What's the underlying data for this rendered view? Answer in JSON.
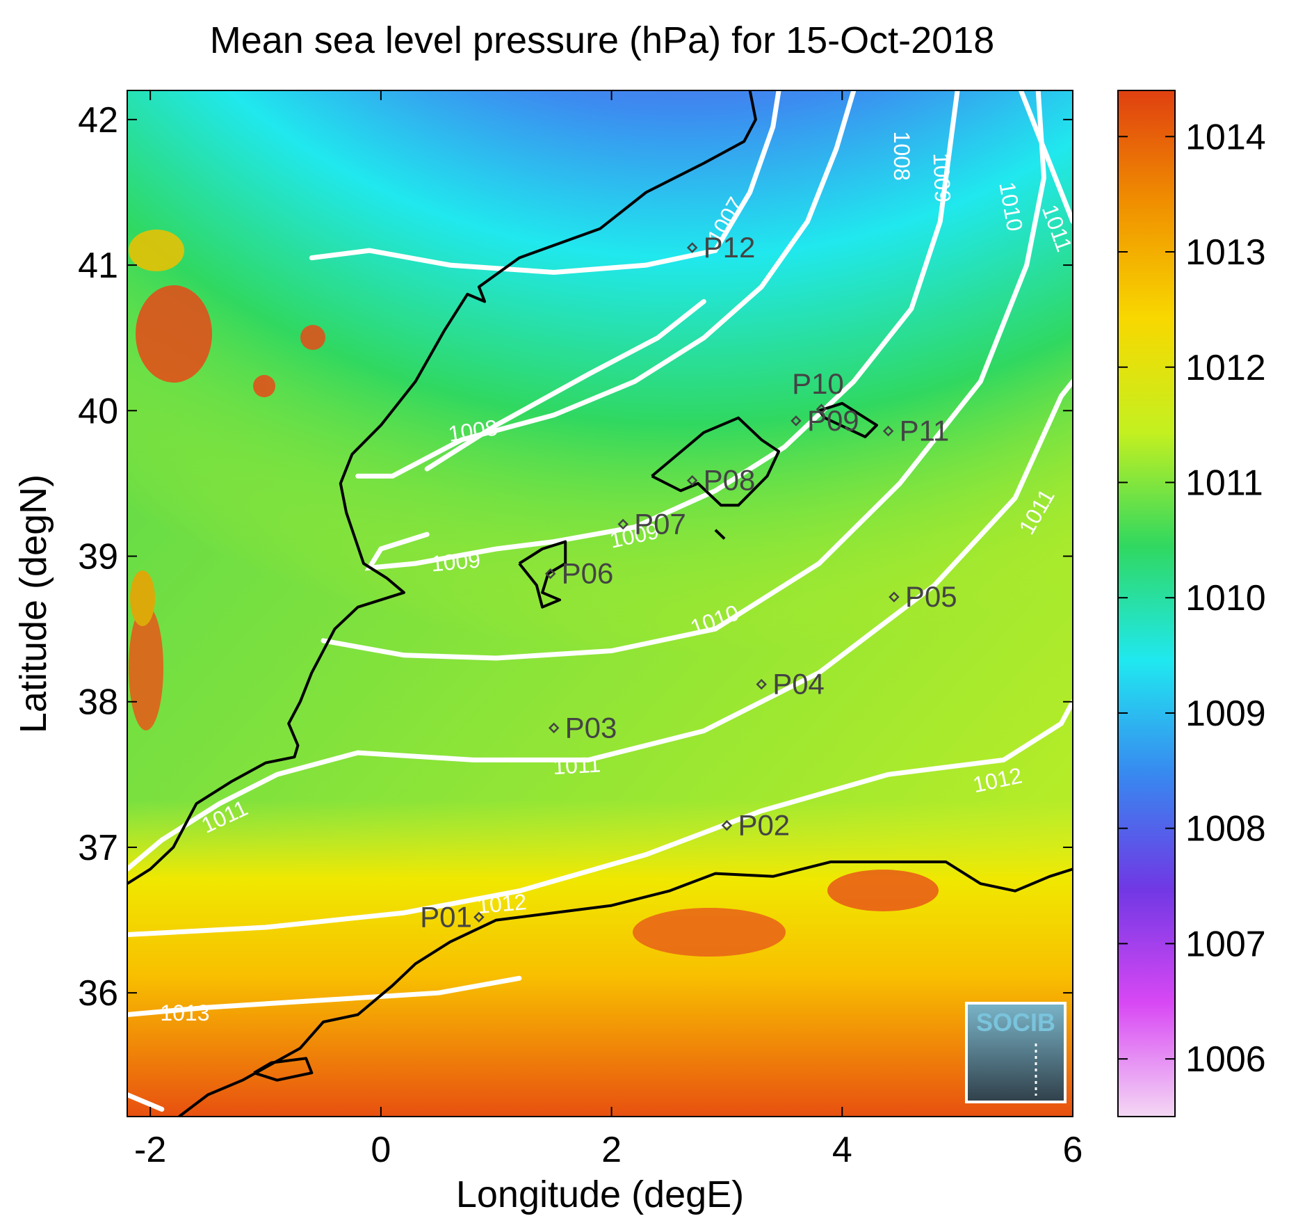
{
  "chart_data": {
    "type": "heatmap",
    "title": "Mean sea level pressure (hPa) for 15-Oct-2018",
    "xlabel": "Longitude (degE)",
    "ylabel": "Latitude (degN)",
    "xlim": [
      -2.2,
      6.0
    ],
    "ylim": [
      35.15,
      42.2
    ],
    "x_ticks": [
      -2,
      0,
      2,
      4,
      6
    ],
    "x_tick_labels": [
      "-2",
      "0",
      "2",
      "4",
      "6"
    ],
    "y_ticks": [
      36,
      37,
      38,
      39,
      40,
      41,
      42
    ],
    "y_tick_labels": [
      "36",
      "37",
      "38",
      "39",
      "40",
      "41",
      "42"
    ],
    "colorbar": {
      "range": [
        1005.5,
        1014.4
      ],
      "ticks": [
        1006,
        1007,
        1008,
        1009,
        1010,
        1011,
        1012,
        1013,
        1014
      ],
      "tick_labels": [
        "1006",
        "1007",
        "1008",
        "1009",
        "1010",
        "1011",
        "1012",
        "1013",
        "1014"
      ],
      "colormap": [
        "#f4d8f4",
        "#d848f4",
        "#7038e4",
        "#3888f0",
        "#20e8f0",
        "#30d860",
        "#c4f020",
        "#f8d800",
        "#f09000",
        "#e04010"
      ]
    },
    "contour_color": "#ffffff",
    "coastline_color": "#000000",
    "contour_labels": [
      {
        "text": "1007",
        "lon": 3.0,
        "lat": 41.3,
        "angle": -60
      },
      {
        "text": "1008",
        "lon": 4.5,
        "lat": 41.75,
        "angle": 90
      },
      {
        "text": "1008",
        "lon": 0.8,
        "lat": 39.85,
        "angle": -8
      },
      {
        "text": "1009",
        "lon": 4.85,
        "lat": 41.6,
        "angle": 88
      },
      {
        "text": "1009",
        "lon": 0.65,
        "lat": 38.95,
        "angle": -5
      },
      {
        "text": "1009",
        "lon": 2.2,
        "lat": 39.13,
        "angle": -12
      },
      {
        "text": "1010",
        "lon": 5.45,
        "lat": 41.4,
        "angle": 80
      },
      {
        "text": "1010",
        "lon": 2.9,
        "lat": 38.55,
        "angle": -20
      },
      {
        "text": "1011",
        "lon": 5.85,
        "lat": 41.25,
        "angle": 70
      },
      {
        "text": "1011",
        "lon": 5.7,
        "lat": 39.3,
        "angle": -60
      },
      {
        "text": "1011",
        "lon": 1.7,
        "lat": 37.55,
        "angle": -3
      },
      {
        "text": "1011",
        "lon": -1.35,
        "lat": 37.2,
        "angle": -25
      },
      {
        "text": "1012",
        "lon": 5.35,
        "lat": 37.45,
        "angle": -12
      },
      {
        "text": "1012",
        "lon": 1.05,
        "lat": 36.6,
        "angle": -5
      },
      {
        "text": "1013",
        "lon": -1.7,
        "lat": 35.85,
        "angle": 0
      }
    ],
    "stations": [
      {
        "name": "P01",
        "lon": 0.85,
        "lat": 36.52
      },
      {
        "name": "P02",
        "lon": 3.0,
        "lat": 37.15
      },
      {
        "name": "P03",
        "lon": 1.5,
        "lat": 37.82
      },
      {
        "name": "P04",
        "lon": 3.3,
        "lat": 38.12
      },
      {
        "name": "P05",
        "lon": 4.45,
        "lat": 38.72
      },
      {
        "name": "P06",
        "lon": 1.47,
        "lat": 38.88
      },
      {
        "name": "P07",
        "lon": 2.1,
        "lat": 39.22
      },
      {
        "name": "P08",
        "lon": 2.7,
        "lat": 39.52
      },
      {
        "name": "P09",
        "lon": 3.6,
        "lat": 39.93
      },
      {
        "name": "P10",
        "lon": 3.82,
        "lat": 40.01
      },
      {
        "name": "P11",
        "lon": 4.4,
        "lat": 39.86
      },
      {
        "name": "P12",
        "lon": 2.7,
        "lat": 41.12
      }
    ]
  },
  "logo": {
    "text": "SOCIB"
  }
}
